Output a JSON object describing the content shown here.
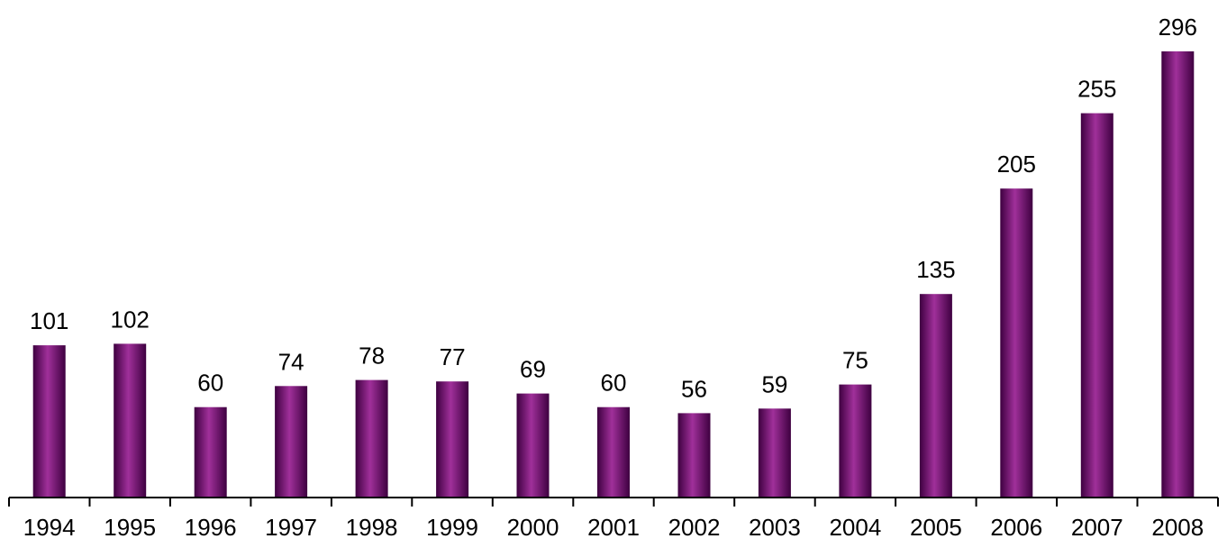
{
  "chart_data": {
    "type": "bar",
    "categories": [
      "1994",
      "1995",
      "1996",
      "1997",
      "1998",
      "1999",
      "2000",
      "2001",
      "2002",
      "2003",
      "2004",
      "2005",
      "2006",
      "2007",
      "2008"
    ],
    "values": [
      101,
      102,
      60,
      74,
      78,
      77,
      69,
      60,
      56,
      59,
      75,
      135,
      205,
      255,
      296
    ],
    "title": "",
    "xlabel": "",
    "ylabel": "",
    "ylim": [
      0,
      296
    ],
    "grid": false,
    "data_labels": true,
    "bar_color": "#6e0070",
    "bar_highlight_color": "#a0309a",
    "bar_shadow_color": "#3e0040"
  }
}
